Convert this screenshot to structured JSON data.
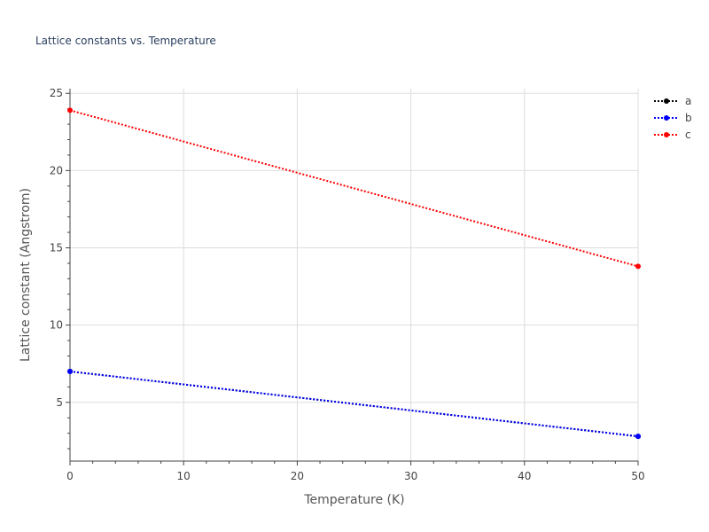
{
  "chart_data": {
    "type": "line",
    "title": "Lattice constants vs. Temperature",
    "xlabel": "Temperature (K)",
    "ylabel": "Lattice constant (Angstrom)",
    "x": [
      0,
      50
    ],
    "xlim": [
      0,
      50
    ],
    "ylim": [
      1.2,
      25.3
    ],
    "xticks": [
      0,
      10,
      20,
      30,
      40,
      50
    ],
    "yticks": [
      5,
      10,
      15,
      20,
      25
    ],
    "grid": true,
    "legend_position": "top-right",
    "line_style": "dotted",
    "series": [
      {
        "name": "a",
        "color": "#000000",
        "values": [
          7.0,
          2.8
        ]
      },
      {
        "name": "b",
        "color": "#0000ff",
        "values": [
          7.0,
          2.8
        ]
      },
      {
        "name": "c",
        "color": "#ff0000",
        "values": [
          23.9,
          13.8
        ]
      }
    ]
  }
}
